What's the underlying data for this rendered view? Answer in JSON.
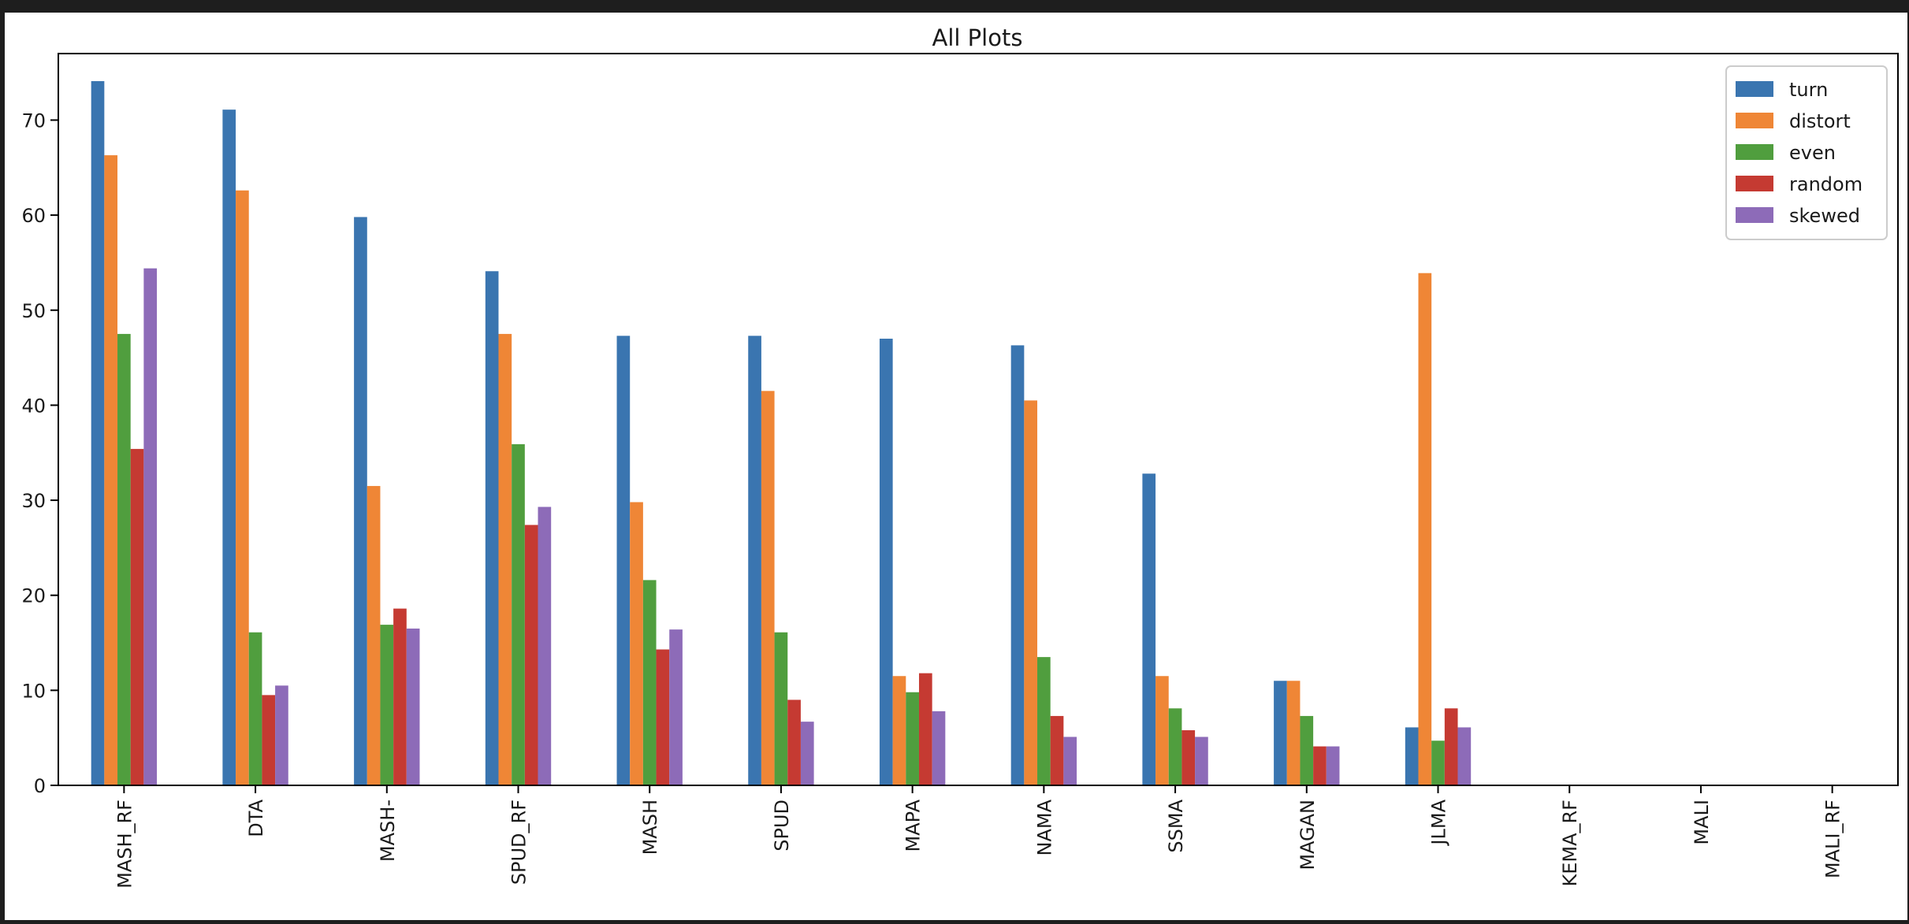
{
  "chart_data": {
    "type": "bar",
    "title": "All Plots",
    "xlabel": "",
    "ylabel": "",
    "ylim": [
      0,
      77
    ],
    "yticks": [
      0,
      10,
      20,
      30,
      40,
      50,
      60,
      70
    ],
    "legend_position": "top-right",
    "grid": false,
    "categories": [
      "MASH_RF",
      "DTA",
      "MASH-",
      "SPUD_RF",
      "MASH",
      "SPUD",
      "MAPA",
      "NAMA",
      "SSMA",
      "MAGAN",
      "JLMA",
      "KEMA_RF",
      "MALI",
      "MALI_RF"
    ],
    "series": [
      {
        "name": "turn",
        "color": "#3a75b0",
        "values": [
          74.1,
          71.1,
          59.8,
          54.1,
          47.3,
          47.3,
          47.0,
          46.3,
          32.8,
          11.0,
          6.1,
          0,
          0,
          0
        ]
      },
      {
        "name": "distort",
        "color": "#ef8636",
        "values": [
          66.3,
          62.6,
          31.5,
          47.5,
          29.8,
          41.5,
          11.5,
          40.5,
          11.5,
          11.0,
          53.9,
          0,
          0,
          0
        ]
      },
      {
        "name": "even",
        "color": "#509e3e",
        "values": [
          47.5,
          16.1,
          16.9,
          35.9,
          21.6,
          16.1,
          9.8,
          13.5,
          8.1,
          7.3,
          4.7,
          0,
          0,
          0
        ]
      },
      {
        "name": "random",
        "color": "#c53a32",
        "values": [
          35.4,
          9.5,
          18.6,
          27.4,
          14.3,
          9.0,
          11.8,
          7.3,
          5.8,
          4.1,
          8.1,
          0,
          0,
          0
        ]
      },
      {
        "name": "skewed",
        "color": "#8d6bb8",
        "values": [
          54.4,
          10.5,
          16.5,
          29.3,
          16.4,
          6.7,
          7.8,
          5.1,
          5.1,
          4.1,
          6.1,
          0,
          0,
          0
        ]
      }
    ]
  }
}
